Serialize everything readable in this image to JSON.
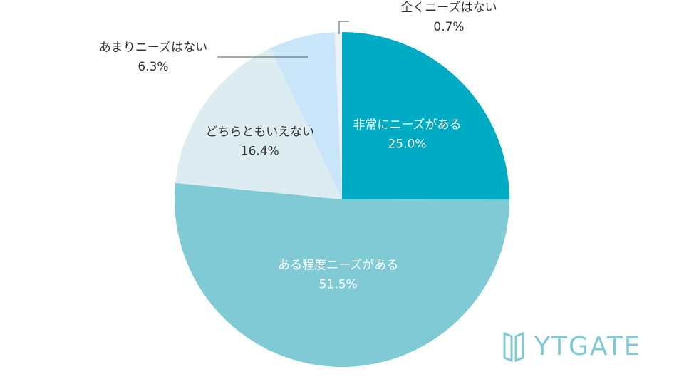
{
  "chart_data": {
    "type": "pie",
    "categories": [
      "非常にニーズがある",
      "ある程度ニーズがある",
      "どちらともいえない",
      "あまりニーズはない",
      "全くニーズはない"
    ],
    "values": [
      25,
      51.5,
      16.4,
      6.3,
      0.7
    ],
    "value_labels": [
      "25.0%",
      "51.5%",
      "16.4%",
      "6.3%",
      "0.7%"
    ],
    "colors": [
      "#00acc4",
      "#7fcad5",
      "#dcecf0",
      "#c8e5f9",
      "#eef2f5"
    ],
    "label_colors": [
      "#ffffff",
      "#ffffff",
      "#333333",
      "#333333",
      "#333333"
    ]
  },
  "logo": "YTGATE"
}
